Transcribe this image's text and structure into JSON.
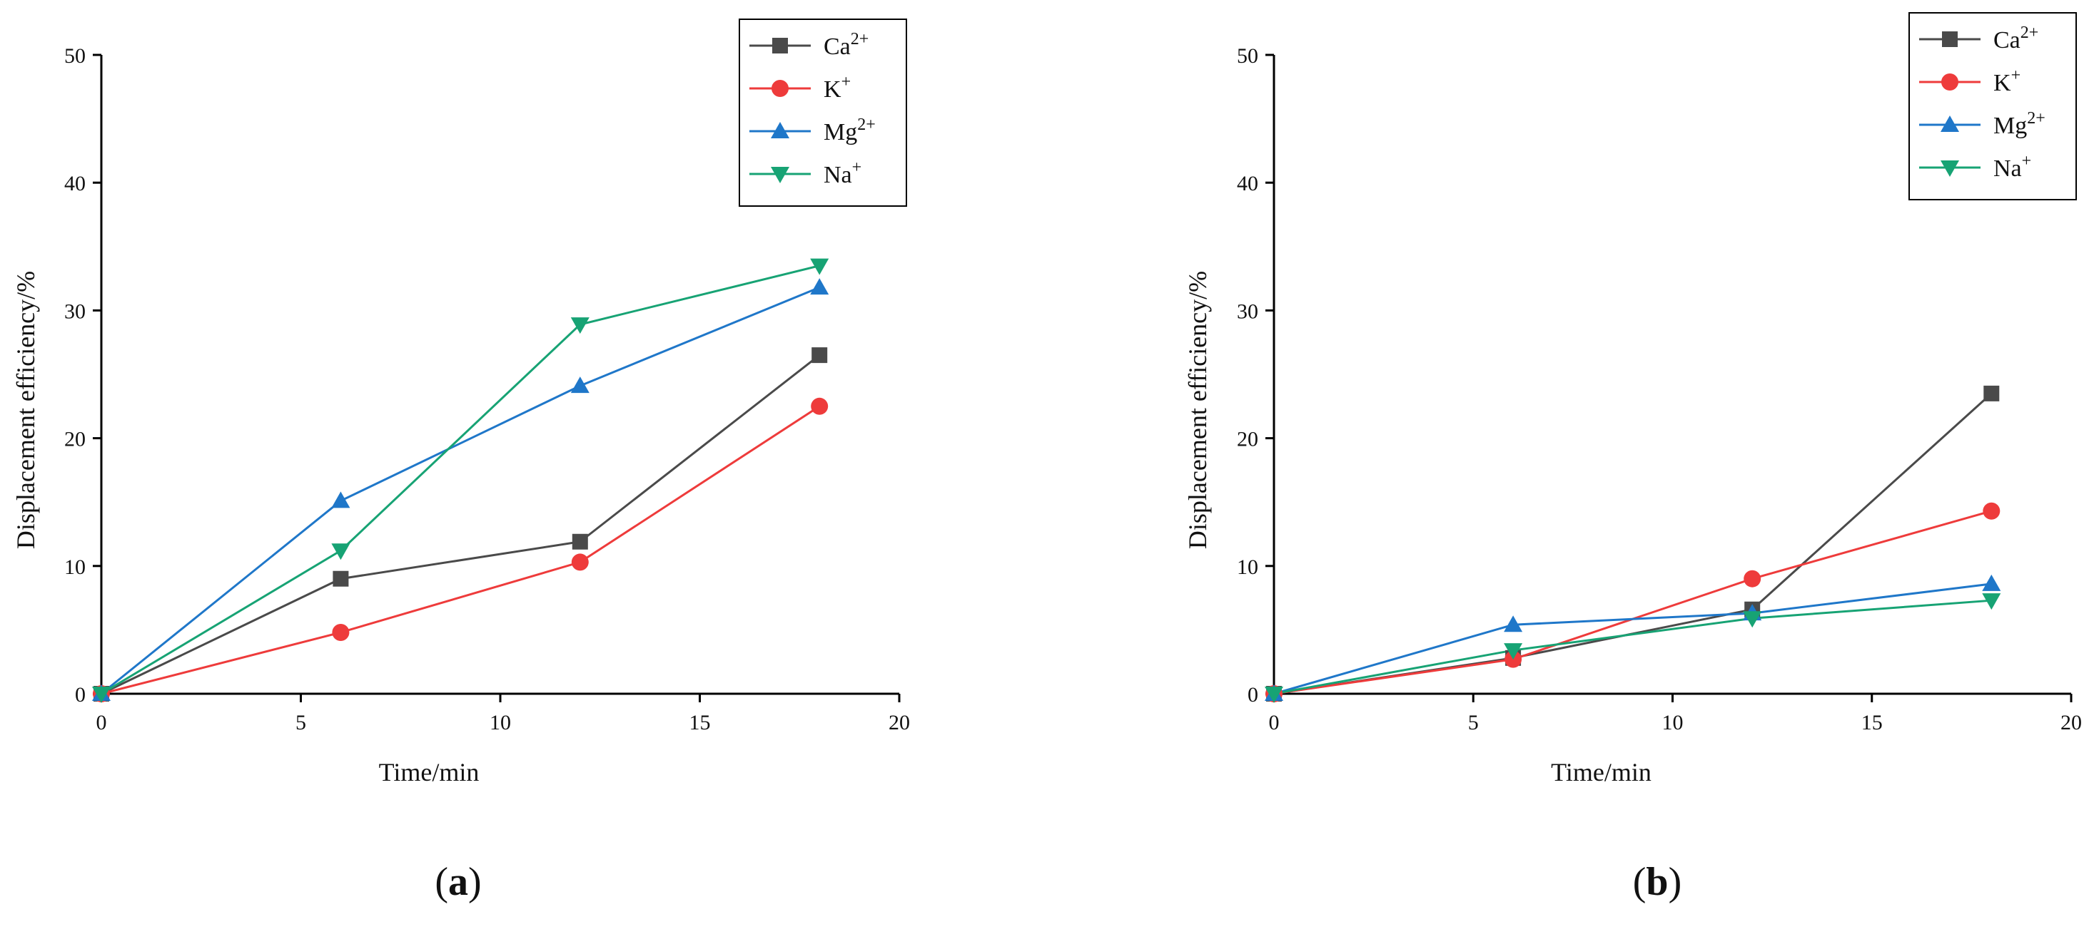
{
  "chart_data": [
    {
      "type": "line",
      "panel_label_prefix": "(",
      "panel_label_letter": "a",
      "panel_label_suffix": ")",
      "title": "",
      "xlabel": "Time/min",
      "ylabel": "Displacement efficiency/%",
      "xlim": [
        0,
        20
      ],
      "ylim": [
        0,
        50
      ],
      "xticks": [
        0,
        5,
        10,
        15,
        20
      ],
      "yticks": [
        0,
        10,
        20,
        30,
        40,
        50
      ],
      "legend_position": "top-right",
      "series": [
        {
          "name": "Ca",
          "sup": "2+",
          "marker": "square",
          "color": "#4a4a4a",
          "x": [
            0,
            6,
            12,
            18
          ],
          "y": [
            0,
            9.0,
            11.9,
            26.5
          ]
        },
        {
          "name": "K",
          "sup": "+",
          "marker": "circle",
          "color": "#ee3b3b",
          "x": [
            0,
            6,
            12,
            18
          ],
          "y": [
            0,
            4.8,
            10.3,
            22.5
          ]
        },
        {
          "name": "Mg",
          "sup": "2+",
          "marker": "triangle-up",
          "color": "#1f77c9",
          "x": [
            0,
            6,
            12,
            18
          ],
          "y": [
            0,
            15.1,
            24.1,
            31.8
          ]
        },
        {
          "name": "Na",
          "sup": "+",
          "marker": "triangle-down",
          "color": "#17a374",
          "x": [
            0,
            6,
            12,
            18
          ],
          "y": [
            0,
            11.2,
            28.9,
            33.5
          ]
        }
      ]
    },
    {
      "type": "line",
      "panel_label_prefix": "(",
      "panel_label_letter": "b",
      "panel_label_suffix": ")",
      "title": "",
      "xlabel": "Time/min",
      "ylabel": "Displacement efficiency/%",
      "xlim": [
        0,
        20
      ],
      "ylim": [
        0,
        50
      ],
      "xticks": [
        0,
        5,
        10,
        15,
        20
      ],
      "yticks": [
        0,
        10,
        20,
        30,
        40,
        50
      ],
      "legend_position": "top-right",
      "series": [
        {
          "name": "Ca",
          "sup": "2+",
          "marker": "square",
          "color": "#4a4a4a",
          "x": [
            0,
            6,
            12,
            18
          ],
          "y": [
            0,
            2.8,
            6.6,
            23.5
          ]
        },
        {
          "name": "K",
          "sup": "+",
          "marker": "circle",
          "color": "#ee3b3b",
          "x": [
            0,
            6,
            12,
            18
          ],
          "y": [
            0,
            2.7,
            9.0,
            14.3
          ]
        },
        {
          "name": "Mg",
          "sup": "2+",
          "marker": "triangle-up",
          "color": "#1f77c9",
          "x": [
            0,
            6,
            12,
            18
          ],
          "y": [
            0,
            5.4,
            6.3,
            8.6
          ]
        },
        {
          "name": "Na",
          "sup": "+",
          "marker": "triangle-down",
          "color": "#17a374",
          "x": [
            0,
            6,
            12,
            18
          ],
          "y": [
            0,
            3.4,
            5.9,
            7.3
          ]
        }
      ]
    }
  ]
}
